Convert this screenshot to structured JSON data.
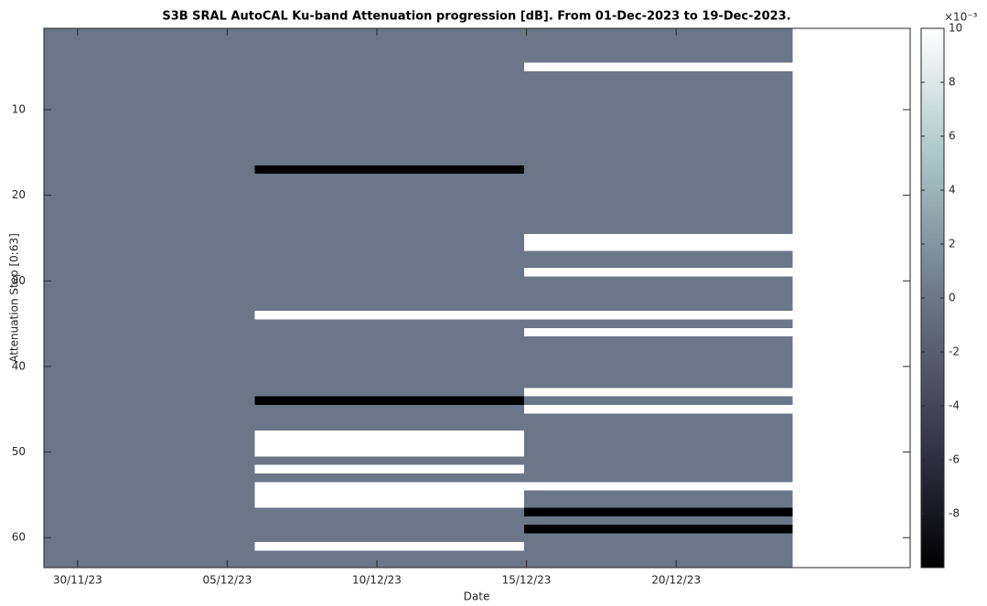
{
  "chart_data": {
    "type": "heatmap",
    "title": "S3B SRAL AutoCAL Ku-band Attenuation progression [dB]. From 01-Dec-2023 to 19-Dec-2023.",
    "xlabel": "Date",
    "ylabel": "Attenuation Step [0:63]",
    "x_edges": [
      "2023-11-28T21:00Z",
      "2023-12-05T22:00Z",
      "2023-12-14T22:00Z",
      "2023-12-23T21:00Z"
    ],
    "y": [
      1,
      2,
      3,
      4,
      5,
      6,
      7,
      8,
      9,
      10,
      11,
      12,
      13,
      14,
      15,
      16,
      17,
      18,
      19,
      20,
      21,
      22,
      23,
      24,
      25,
      26,
      27,
      28,
      29,
      30,
      31,
      32,
      33,
      34,
      35,
      36,
      37,
      38,
      39,
      40,
      41,
      42,
      43,
      44,
      45,
      46,
      47,
      48,
      49,
      50,
      51,
      52,
      53,
      54,
      55,
      56,
      57,
      58,
      59,
      60,
      61,
      62,
      63
    ],
    "z": [
      [
        0,
        0,
        0
      ],
      [
        0,
        0,
        0
      ],
      [
        0,
        0,
        0
      ],
      [
        0,
        0,
        0
      ],
      [
        0,
        0,
        10
      ],
      [
        0,
        0,
        0
      ],
      [
        0,
        0,
        0
      ],
      [
        0,
        0,
        0
      ],
      [
        0,
        0,
        0
      ],
      [
        0,
        0,
        0
      ],
      [
        0,
        0,
        0
      ],
      [
        0,
        0,
        0
      ],
      [
        0,
        0,
        0
      ],
      [
        0,
        0,
        0
      ],
      [
        0,
        0,
        0
      ],
      [
        0,
        0,
        0
      ],
      [
        0,
        -10,
        0
      ],
      [
        0,
        0,
        0
      ],
      [
        0,
        0,
        0
      ],
      [
        0,
        0,
        0
      ],
      [
        0,
        0,
        0
      ],
      [
        0,
        0,
        0
      ],
      [
        0,
        0,
        0
      ],
      [
        0,
        0,
        0
      ],
      [
        0,
        0,
        10
      ],
      [
        0,
        0,
        10
      ],
      [
        0,
        0,
        0
      ],
      [
        0,
        0,
        0
      ],
      [
        0,
        0,
        10
      ],
      [
        0,
        0,
        0
      ],
      [
        0,
        0,
        0
      ],
      [
        0,
        0,
        0
      ],
      [
        0,
        0,
        0
      ],
      [
        0,
        10,
        10
      ],
      [
        0,
        0,
        0
      ],
      [
        0,
        0,
        10
      ],
      [
        0,
        0,
        0
      ],
      [
        0,
        0,
        0
      ],
      [
        0,
        0,
        0
      ],
      [
        0,
        0,
        0
      ],
      [
        0,
        0,
        0
      ],
      [
        0,
        0,
        0
      ],
      [
        0,
        0,
        10
      ],
      [
        0,
        -10,
        0
      ],
      [
        0,
        0,
        10
      ],
      [
        0,
        0,
        0
      ],
      [
        0,
        0,
        0
      ],
      [
        0,
        10,
        0
      ],
      [
        0,
        10,
        0
      ],
      [
        0,
        10,
        0
      ],
      [
        0,
        0,
        0
      ],
      [
        0,
        10,
        0
      ],
      [
        0,
        0,
        0
      ],
      [
        0,
        10,
        10
      ],
      [
        0,
        10,
        0
      ],
      [
        0,
        10,
        0
      ],
      [
        0,
        0,
        -10
      ],
      [
        0,
        0,
        0
      ],
      [
        0,
        0,
        -10
      ],
      [
        0,
        0,
        0
      ],
      [
        0,
        10,
        0
      ],
      [
        0,
        0,
        0
      ],
      [
        0,
        0,
        0
      ]
    ],
    "xlim": [
      "2023-11-28T21:00Z",
      "2023-12-27T19:40Z"
    ],
    "xticks": [
      {
        "value": "2023-11-30",
        "label": "30/11/23"
      },
      {
        "value": "2023-12-05",
        "label": "05/12/23"
      },
      {
        "value": "2023-12-10",
        "label": "10/12/23"
      },
      {
        "value": "2023-12-15",
        "label": "15/12/23"
      },
      {
        "value": "2023-12-20",
        "label": "20/12/23"
      }
    ],
    "ylim": [
      0.5,
      63.5
    ],
    "y_reversed": true,
    "yticks": [
      10,
      20,
      30,
      40,
      50,
      60
    ],
    "clim": [
      -10,
      10
    ],
    "cticks": [
      -8,
      -6,
      -4,
      -2,
      0,
      2,
      4,
      6,
      8,
      10
    ],
    "colorbar_label": "×10⁻³",
    "colormap": [
      "#000000",
      "#3a3950",
      "#6b7689",
      "#a6c4c4",
      "#ffffff"
    ]
  }
}
